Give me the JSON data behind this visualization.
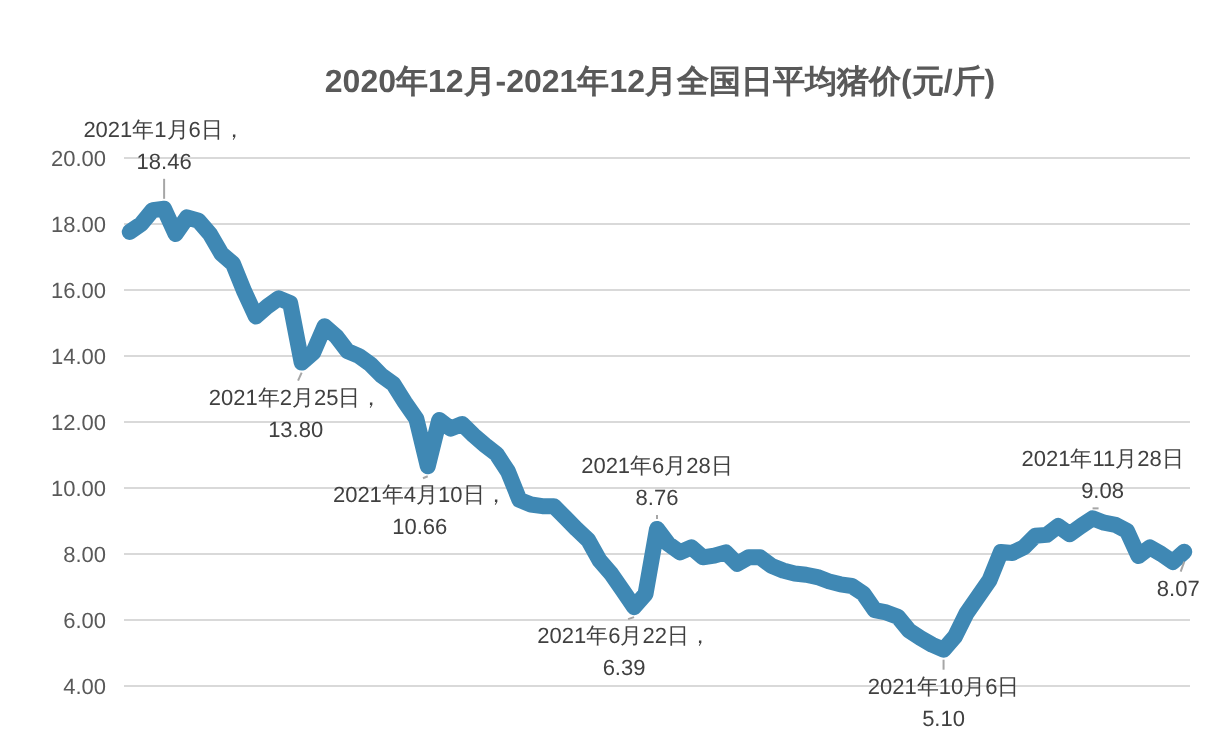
{
  "chart_data": {
    "type": "line",
    "title": "2020年12月-2021年12月全国日平均猪价(元/斤)",
    "categories": [
      null,
      null,
      null,
      null,
      null,
      null,
      null,
      null,
      null,
      null,
      null,
      null,
      null,
      null,
      null,
      null,
      null,
      null,
      null,
      null,
      null,
      null,
      null,
      null,
      null,
      null,
      null,
      null,
      null,
      null,
      null,
      null,
      null,
      null,
      null,
      null,
      null,
      null,
      null,
      null,
      null,
      null,
      null,
      null,
      null,
      null,
      null,
      null,
      null,
      null,
      null,
      null,
      null,
      null,
      null,
      null,
      null,
      null,
      null,
      null,
      null,
      null,
      null,
      null,
      null,
      null,
      null,
      null,
      null,
      null,
      null,
      null,
      null,
      null,
      null,
      null,
      null,
      null,
      null,
      null,
      null,
      null,
      null,
      null,
      null,
      null,
      null,
      null,
      null,
      null,
      null,
      null,
      null
    ],
    "series": [
      {
        "color": "#3f88b4",
        "values": [
          17.76,
          18.0,
          18.42,
          18.46,
          17.7,
          18.2,
          18.1,
          17.7,
          17.1,
          16.8,
          15.95,
          15.2,
          15.5,
          15.75,
          15.6,
          13.8,
          14.1,
          14.9,
          14.6,
          14.15,
          14.0,
          13.75,
          13.4,
          13.15,
          12.6,
          12.1,
          10.66,
          12.06,
          11.8,
          11.94,
          11.6,
          11.3,
          11.03,
          10.5,
          9.64,
          9.5,
          9.45,
          9.45,
          9.1,
          8.75,
          8.42,
          7.8,
          7.4,
          6.9,
          6.39,
          6.79,
          8.76,
          8.3,
          8.05,
          8.2,
          7.9,
          7.95,
          8.05,
          7.7,
          7.9,
          7.9,
          7.64,
          7.5,
          7.41,
          7.37,
          7.3,
          7.17,
          7.08,
          7.03,
          6.8,
          6.3,
          6.23,
          6.1,
          5.68,
          5.45,
          5.25,
          5.1,
          5.5,
          6.2,
          6.7,
          7.2,
          8.06,
          8.03,
          8.2,
          8.55,
          8.58,
          8.85,
          8.6,
          8.85,
          9.08,
          8.95,
          8.88,
          8.7,
          7.94,
          8.2,
          8.0,
          7.76,
          8.07
        ]
      }
    ],
    "line_style": "solid",
    "ylim": [
      4,
      20
    ],
    "yticks": [
      {
        "value": 4,
        "label": "4.00"
      },
      {
        "value": 6,
        "label": "6.00"
      },
      {
        "value": 8,
        "label": "8.00"
      },
      {
        "value": 10,
        "label": "10.00"
      },
      {
        "value": 12,
        "label": "12.00"
      },
      {
        "value": 14,
        "label": "14.00"
      },
      {
        "value": 16,
        "label": "16.00"
      },
      {
        "value": 18,
        "label": "18.00"
      },
      {
        "value": 20,
        "label": "20.00"
      }
    ],
    "tick_labels": "y",
    "grid": "y",
    "annotations": [
      {
        "text": "2021年1月6日，\n18.46",
        "y": 18.46
      },
      {
        "text": "2021年2月25日，\n13.80",
        "y": 13.8
      },
      {
        "text": "2021年4月10日，\n10.66",
        "y": 10.66
      },
      {
        "text": "2021年6月22日，\n6.39",
        "y": 6.39
      },
      {
        "text": "2021年6月28日\n8.76",
        "y": 8.76
      },
      {
        "text": "2021年10月6日\n5.10",
        "y": 5.1
      },
      {
        "text": "2021年11月28日\n9.08",
        "y": 9.08
      },
      {
        "text": "8.07",
        "y": 8.07
      }
    ]
  }
}
